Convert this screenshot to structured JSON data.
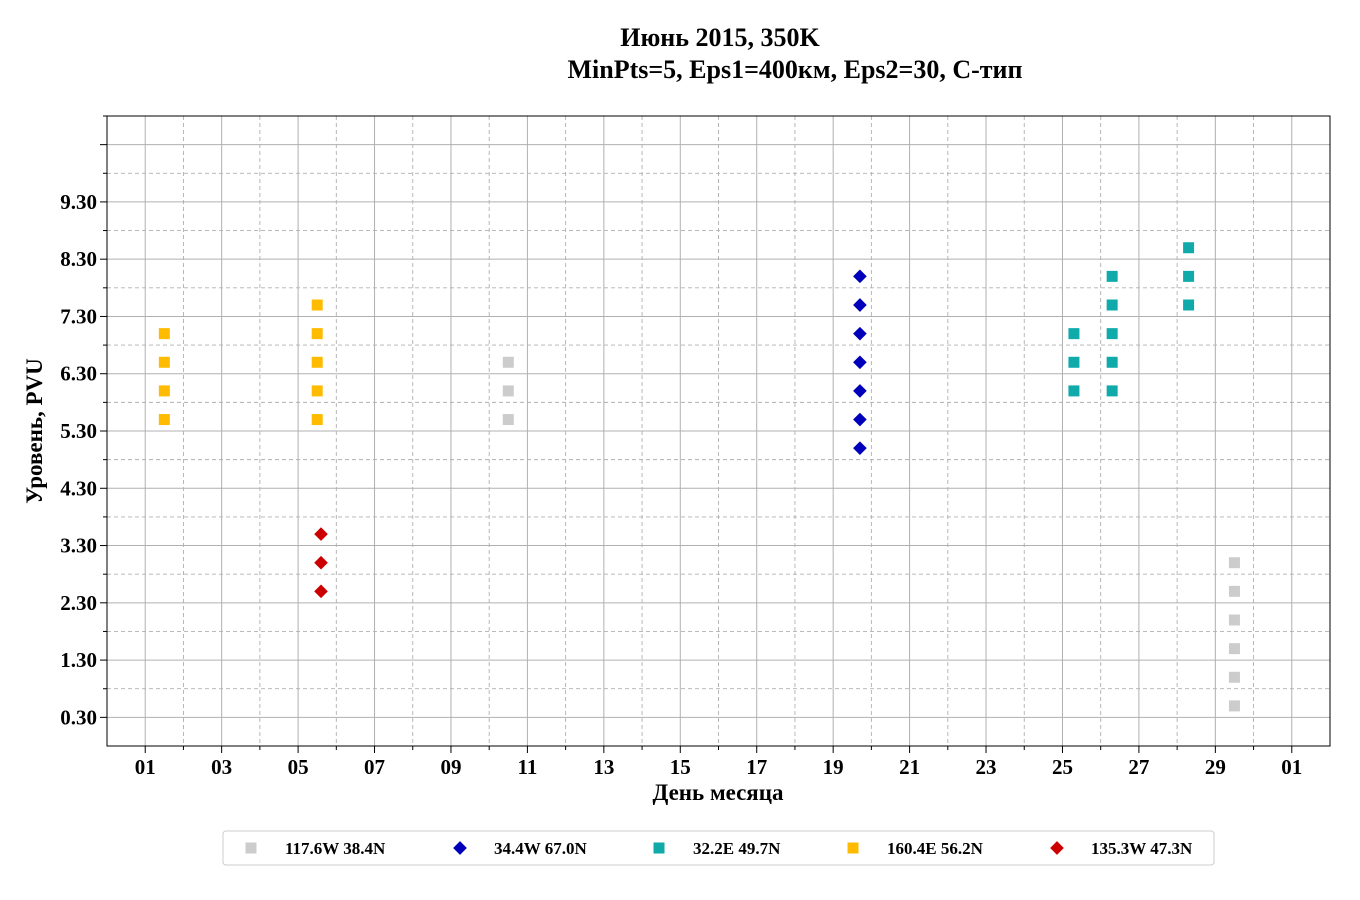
{
  "chart_data": {
    "type": "scatter",
    "title_line1": "Июнь 2015, 350K",
    "title_line2": "MinPts=5, Eps1=400км, Eps2=30, C-тип",
    "xlabel": "День месяца",
    "ylabel": "Уровень, PVU",
    "x_tick_labels": [
      "01",
      "03",
      "05",
      "07",
      "09",
      "11",
      "13",
      "15",
      "17",
      "19",
      "21",
      "23",
      "25",
      "27",
      "29",
      "01"
    ],
    "y_tick_labels": [
      "0.30",
      "1.30",
      "2.30",
      "3.30",
      "4.30",
      "5.30",
      "6.30",
      "7.30",
      "8.30",
      "9.30"
    ],
    "xlim": [
      0,
      32
    ],
    "ylim": [
      -0.2,
      10.8
    ],
    "grid": true,
    "legend_position": "bottom",
    "series": [
      {
        "name": "117.6W 38.4N",
        "marker": "square",
        "color": "#cccccc",
        "points": [
          [
            10.5,
            5.5
          ],
          [
            10.5,
            6.0
          ],
          [
            10.5,
            6.5
          ],
          [
            29.5,
            0.5
          ],
          [
            29.5,
            1.0
          ],
          [
            29.5,
            1.5
          ],
          [
            29.5,
            2.0
          ],
          [
            29.5,
            2.5
          ],
          [
            29.5,
            3.0
          ]
        ]
      },
      {
        "name": "34.4W 67.0N",
        "marker": "diamond",
        "color": "#0000bb",
        "points": [
          [
            19.7,
            5.0
          ],
          [
            19.7,
            5.5
          ],
          [
            19.7,
            6.0
          ],
          [
            19.7,
            6.5
          ],
          [
            19.7,
            7.0
          ],
          [
            19.7,
            7.5
          ],
          [
            19.7,
            8.0
          ]
        ]
      },
      {
        "name": "32.2E 49.7N",
        "marker": "square",
        "color": "#11aaaa",
        "points": [
          [
            25.3,
            6.0
          ],
          [
            25.3,
            6.5
          ],
          [
            25.3,
            7.0
          ],
          [
            26.3,
            6.0
          ],
          [
            26.3,
            6.5
          ],
          [
            26.3,
            7.0
          ],
          [
            26.3,
            7.5
          ],
          [
            26.3,
            8.0
          ],
          [
            28.3,
            7.5
          ],
          [
            28.3,
            8.0
          ],
          [
            28.3,
            8.5
          ]
        ]
      },
      {
        "name": "160.4E 56.2N",
        "marker": "square",
        "color": "#ffbb00",
        "points": [
          [
            1.5,
            5.5
          ],
          [
            1.5,
            6.0
          ],
          [
            1.5,
            6.5
          ],
          [
            1.5,
            7.0
          ],
          [
            5.5,
            5.5
          ],
          [
            5.5,
            6.0
          ],
          [
            5.5,
            6.5
          ],
          [
            5.5,
            7.0
          ],
          [
            5.5,
            7.5
          ]
        ]
      },
      {
        "name": "135.3W 47.3N",
        "marker": "diamond",
        "color": "#cc0000",
        "points": [
          [
            5.6,
            2.5
          ],
          [
            5.6,
            3.0
          ],
          [
            5.6,
            3.5
          ]
        ]
      }
    ]
  }
}
